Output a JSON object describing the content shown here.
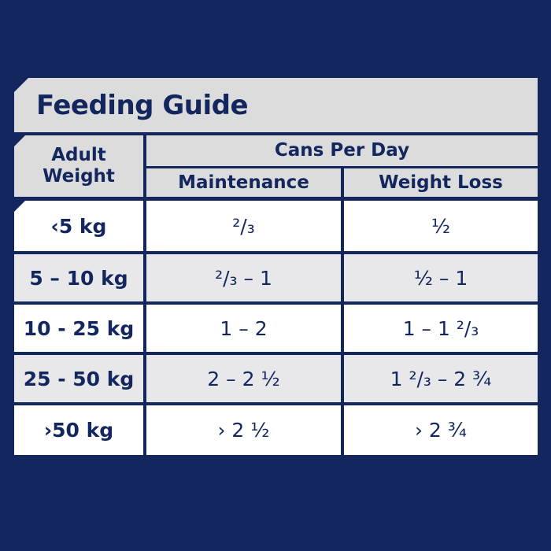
{
  "title": "Feeding Guide",
  "headers": {
    "weight": "Adult Weight",
    "cans_per_day": "Cans Per Day",
    "maintenance": "Maintenance",
    "weight_loss": "Weight Loss"
  },
  "rows": [
    {
      "weight": "‹5 kg",
      "maintenance": "²/₃",
      "weight_loss": "½"
    },
    {
      "weight": "5 – 10 kg",
      "maintenance": "²/₃ – 1",
      "weight_loss": "½ – 1"
    },
    {
      "weight": "10 - 25 kg",
      "maintenance": "1 – 2",
      "weight_loss": "1 – 1 ²/₃"
    },
    {
      "weight": "25 - 50 kg",
      "maintenance": "2 – 2 ½",
      "weight_loss": "1 ²/₃ – 2 ¾"
    },
    {
      "weight": "›50 kg",
      "maintenance": "› 2 ½",
      "weight_loss": "› 2 ¾"
    }
  ],
  "colors": {
    "background": "#13275e",
    "header": "#dcdcdd",
    "row_alt": "#e8e8ea",
    "row": "#ffffff",
    "text": "#13275e"
  }
}
